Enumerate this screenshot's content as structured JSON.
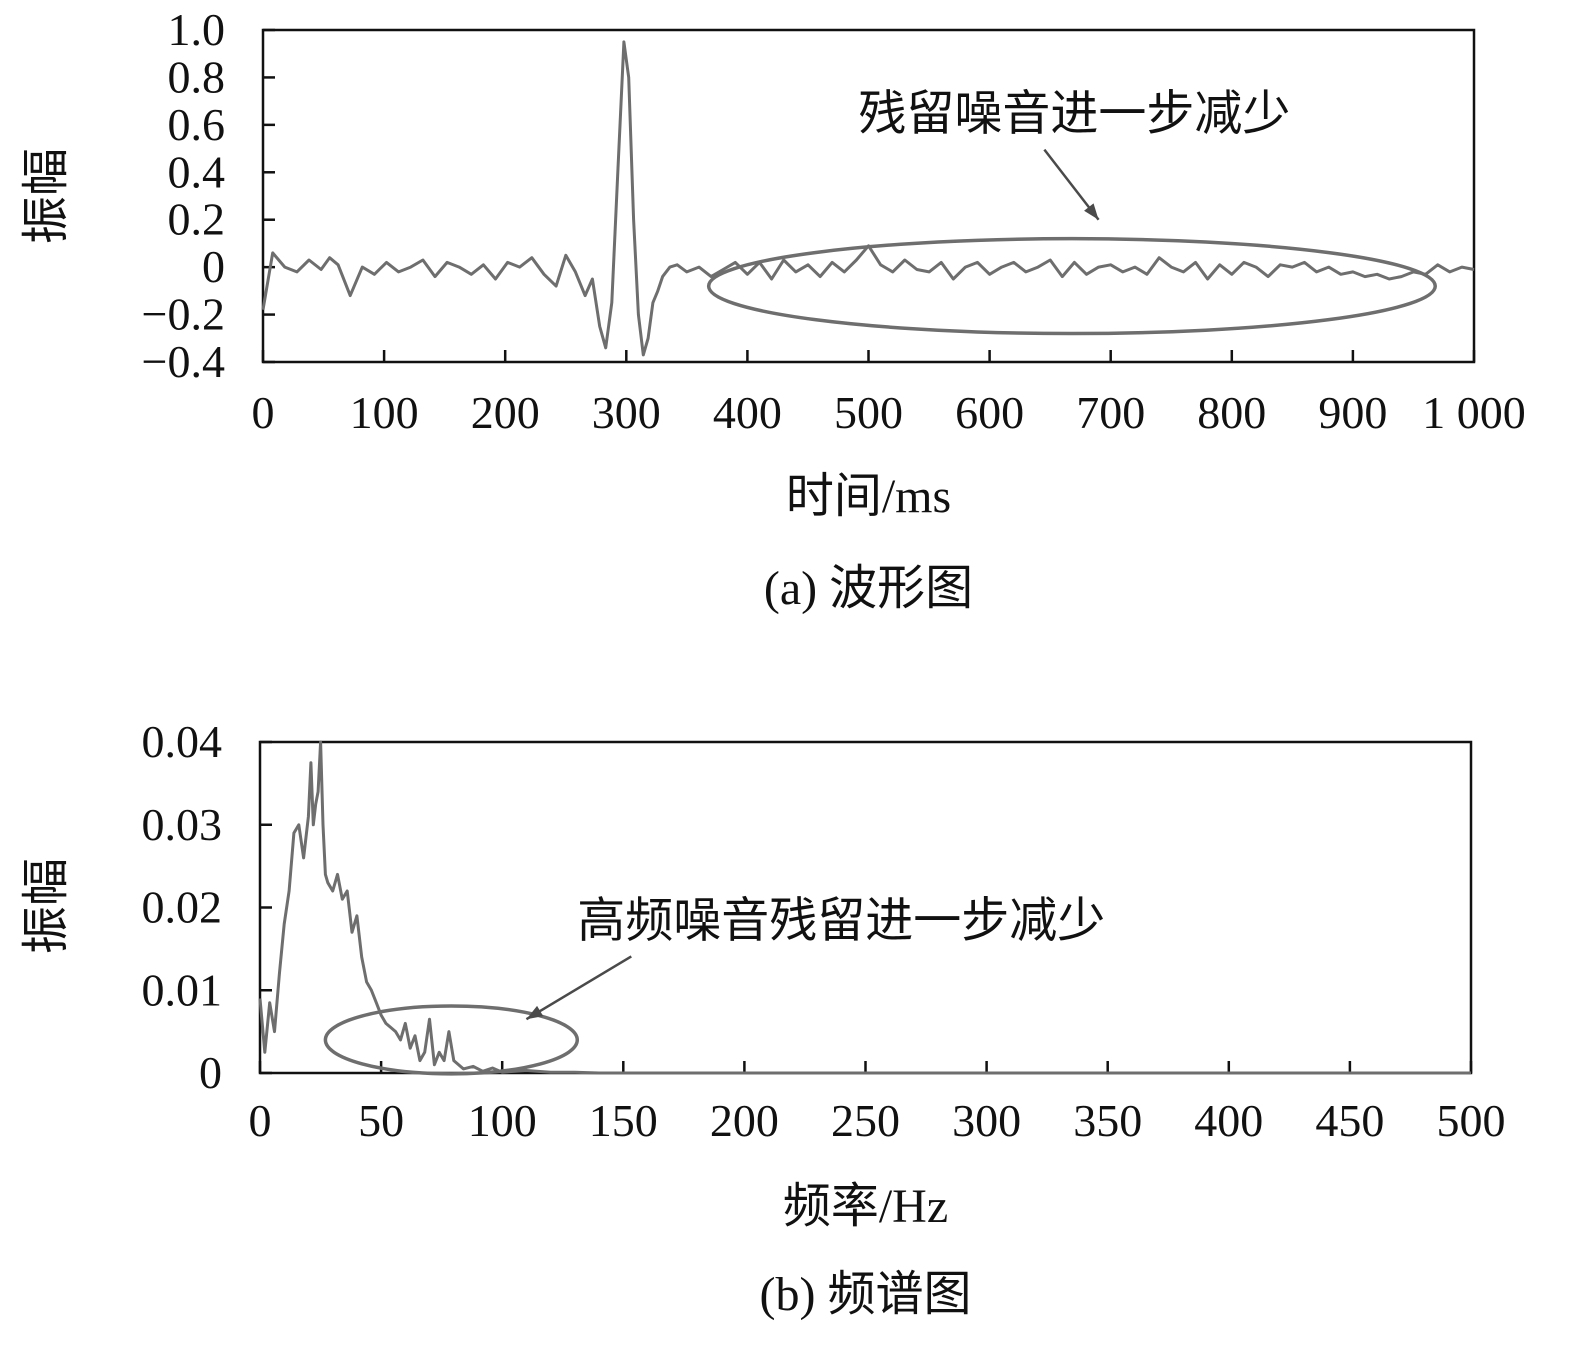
{
  "chart_data": [
    {
      "type": "line",
      "caption": "(a) 波形图",
      "xlabel": "时间/ms",
      "ylabel": "振幅",
      "xlim": [
        0,
        1000
      ],
      "ylim": [
        -0.4,
        1.0
      ],
      "x_ticks": [
        0,
        100,
        200,
        300,
        400,
        500,
        600,
        700,
        800,
        900,
        1000
      ],
      "x_tick_labels": [
        "0",
        "100",
        "200",
        "300",
        "400",
        "500",
        "600",
        "700",
        "800",
        "900",
        "1 000"
      ],
      "y_ticks": [
        1.0,
        0.8,
        0.6,
        0.4,
        0.2,
        0,
        -0.2,
        -0.4
      ],
      "y_tick_labels": [
        "1.0",
        "0.8",
        "0.6",
        "0.4",
        "0.2",
        "0",
        "−0.2",
        "−0.4"
      ],
      "grid": false,
      "series": [
        {
          "x": [
            0,
            8,
            18,
            28,
            38,
            48,
            55,
            62,
            72,
            82,
            92,
            102,
            112,
            122,
            132,
            142,
            152,
            162,
            172,
            182,
            192,
            202,
            212,
            222,
            232,
            242,
            250,
            258,
            266,
            272,
            278,
            283,
            288,
            293,
            298,
            302,
            306,
            310,
            314,
            318,
            322,
            326,
            330,
            336,
            342,
            350,
            360,
            370,
            380,
            390,
            400,
            410,
            420,
            430,
            440,
            450,
            460,
            470,
            480,
            490,
            500,
            510,
            520,
            530,
            540,
            550,
            560,
            570,
            580,
            590,
            600,
            610,
            620,
            630,
            640,
            650,
            660,
            670,
            680,
            690,
            700,
            710,
            720,
            730,
            740,
            750,
            760,
            770,
            780,
            790,
            800,
            810,
            820,
            830,
            840,
            850,
            860,
            870,
            880,
            890,
            900,
            910,
            920,
            930,
            940,
            950,
            960,
            970,
            980,
            990,
            1000
          ],
          "y": [
            -0.18,
            0.06,
            0.0,
            -0.02,
            0.03,
            -0.01,
            0.04,
            0.01,
            -0.12,
            0.0,
            -0.03,
            0.02,
            -0.02,
            0.0,
            0.03,
            -0.04,
            0.02,
            0.0,
            -0.03,
            0.01,
            -0.05,
            0.02,
            0.0,
            0.04,
            -0.03,
            -0.08,
            0.05,
            -0.02,
            -0.12,
            -0.05,
            -0.25,
            -0.34,
            -0.15,
            0.4,
            0.95,
            0.8,
            0.2,
            -0.2,
            -0.37,
            -0.3,
            -0.15,
            -0.1,
            -0.04,
            0.0,
            0.01,
            -0.02,
            0.0,
            -0.04,
            -0.01,
            0.02,
            -0.03,
            0.02,
            -0.05,
            0.03,
            -0.02,
            0.01,
            -0.04,
            0.02,
            -0.02,
            0.03,
            0.09,
            0.01,
            -0.02,
            0.03,
            -0.01,
            -0.02,
            0.02,
            -0.05,
            0.0,
            0.02,
            -0.03,
            0.0,
            0.02,
            -0.02,
            0.0,
            0.03,
            -0.04,
            0.02,
            -0.03,
            0.0,
            0.01,
            -0.02,
            0.0,
            -0.03,
            0.04,
            0.0,
            -0.02,
            0.02,
            -0.05,
            0.01,
            -0.03,
            0.02,
            0.0,
            -0.04,
            0.01,
            0.0,
            0.02,
            -0.02,
            0.0,
            -0.03,
            -0.02,
            -0.04,
            -0.03,
            -0.05,
            -0.04,
            -0.02,
            -0.03,
            0.01,
            -0.02,
            0.0,
            -0.01
          ]
        }
      ],
      "annotations": [
        {
          "text": "残留噪音进一步减少",
          "x": 670,
          "y": 0.58,
          "target_x": 690,
          "target_y": 0.2
        }
      ],
      "highlight_ellipse": {
        "cx": 668,
        "cy": -0.08,
        "rx": 300,
        "ry": 0.2
      }
    },
    {
      "type": "line",
      "caption": "(b) 频谱图",
      "xlabel": "频率/Hz",
      "ylabel": "振幅",
      "xlim": [
        0,
        500
      ],
      "ylim": [
        0,
        0.04
      ],
      "x_ticks": [
        0,
        50,
        100,
        150,
        200,
        250,
        300,
        350,
        400,
        450,
        500
      ],
      "x_tick_labels": [
        "0",
        "50",
        "100",
        "150",
        "200",
        "250",
        "300",
        "350",
        "400",
        "450",
        "500"
      ],
      "y_ticks": [
        0.04,
        0.03,
        0.02,
        0.01,
        0
      ],
      "y_tick_labels": [
        "0.04",
        "0.03",
        "0.02",
        "0.01",
        "0"
      ],
      "grid": false,
      "series": [
        {
          "x": [
            0,
            2,
            4,
            6,
            8,
            10,
            12,
            14,
            16,
            18,
            20,
            21,
            22,
            23,
            24,
            25,
            26,
            27,
            28,
            30,
            32,
            34,
            36,
            38,
            40,
            42,
            44,
            46,
            48,
            50,
            52,
            54,
            56,
            58,
            60,
            62,
            64,
            66,
            68,
            70,
            72,
            74,
            76,
            78,
            80,
            84,
            88,
            92,
            96,
            100,
            110,
            120,
            130,
            140,
            150,
            175,
            200,
            250,
            300,
            350,
            400,
            450,
            500
          ],
          "y": [
            0.009,
            0.0025,
            0.0085,
            0.005,
            0.012,
            0.018,
            0.022,
            0.029,
            0.03,
            0.026,
            0.031,
            0.0375,
            0.03,
            0.0325,
            0.034,
            0.04,
            0.03,
            0.024,
            0.023,
            0.022,
            0.024,
            0.021,
            0.022,
            0.017,
            0.019,
            0.014,
            0.011,
            0.01,
            0.0085,
            0.007,
            0.006,
            0.0055,
            0.005,
            0.004,
            0.006,
            0.003,
            0.0045,
            0.0015,
            0.0025,
            0.0065,
            0.001,
            0.0025,
            0.0015,
            0.005,
            0.0015,
            0.0005,
            0.0008,
            0.0002,
            0.0006,
            0.0001,
            0.0003,
            0.0001,
            0.0001,
            0.0,
            0.0,
            0.0,
            0.0,
            0.0,
            0.0,
            0.0,
            0.0,
            0.0,
            0.0
          ]
        }
      ],
      "annotations": [
        {
          "text": "高频噪音残留进一步减少",
          "x": 240,
          "y": 0.0165,
          "target_x": 110,
          "target_y": 0.0065
        }
      ],
      "highlight_ellipse": {
        "cx": 79,
        "cy": 0.004,
        "rx": 52,
        "ry": 0.0041
      }
    }
  ]
}
